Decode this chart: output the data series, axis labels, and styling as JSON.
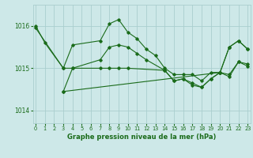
{
  "xlabel": "Graphe pression niveau de la mer (hPa)",
  "bg_color": "#cde8e8",
  "grid_color": "#aacece",
  "line_color": "#1a6b1a",
  "text_color": "#1a6b1a",
  "x_ticks": [
    0,
    1,
    2,
    3,
    4,
    5,
    6,
    7,
    8,
    9,
    10,
    11,
    12,
    13,
    14,
    15,
    16,
    17,
    18,
    19,
    20,
    21,
    22,
    23
  ],
  "y_ticks": [
    1014,
    1015,
    1016
  ],
  "ylim": [
    1013.7,
    1016.5
  ],
  "xlim": [
    -0.3,
    23.3
  ],
  "series": [
    {
      "x": [
        0,
        1,
        3,
        4,
        7,
        8,
        9,
        10,
        11,
        12,
        13,
        14,
        15,
        16,
        17,
        18,
        19,
        20,
        21,
        22,
        23
      ],
      "y": [
        1016.0,
        1015.6,
        1015.0,
        1015.55,
        1015.65,
        1016.05,
        1016.15,
        1015.85,
        1015.7,
        1015.45,
        1015.3,
        1015.0,
        1014.85,
        1014.85,
        1014.85,
        1014.7,
        1014.9,
        1014.9,
        1015.5,
        1015.65,
        1015.45
      ]
    },
    {
      "x": [
        0,
        3,
        4,
        7,
        8,
        9,
        10,
        11,
        12,
        14,
        15,
        16,
        17,
        18,
        19,
        20,
        21,
        22,
        23
      ],
      "y": [
        1015.95,
        1015.0,
        1015.0,
        1015.2,
        1015.5,
        1015.55,
        1015.5,
        1015.35,
        1015.2,
        1014.95,
        1014.7,
        1014.75,
        1014.65,
        1014.55,
        1014.75,
        1014.9,
        1014.85,
        1015.15,
        1015.1
      ]
    },
    {
      "x": [
        3,
        4,
        7,
        8,
        9,
        10,
        14,
        15,
        16,
        17,
        18,
        19,
        20,
        21,
        22,
        23
      ],
      "y": [
        1014.45,
        1015.0,
        1015.0,
        1015.0,
        1015.0,
        1015.0,
        1014.95,
        1014.7,
        1014.75,
        1014.6,
        1014.55,
        1014.75,
        1014.9,
        1014.8,
        1015.15,
        1015.05
      ]
    },
    {
      "x": [
        3,
        20,
        21,
        22,
        23
      ],
      "y": [
        1014.45,
        1014.9,
        1015.5,
        1015.65,
        1015.45
      ]
    }
  ]
}
